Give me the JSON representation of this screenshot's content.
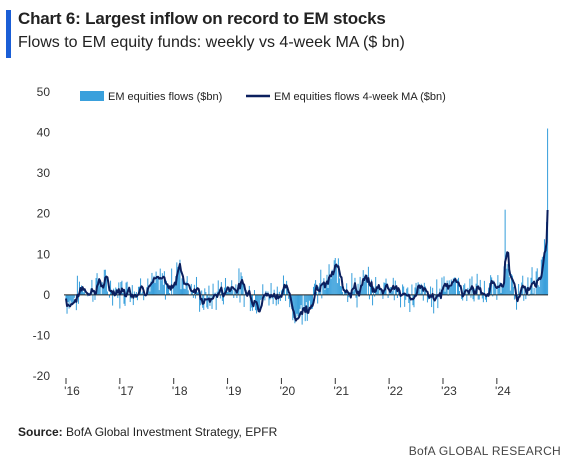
{
  "header": {
    "title": "Chart 6: Largest inflow on record to EM stocks",
    "subtitle": "Flows to EM equity funds: weekly vs 4-week MA ($ bn)"
  },
  "footer": {
    "source_label": "Source:",
    "source_text": " BofA Global Investment Strategy, EPFR",
    "branding": "BofA GLOBAL RESEARCH"
  },
  "colors": {
    "accent": "#1a5ed6",
    "bar": "#3aa0dc",
    "line": "#0b1f5e",
    "zero_line": "#222222"
  },
  "chart_data": {
    "type": "bar",
    "title": "Chart 6: Largest inflow on record to EM stocks",
    "subtitle": "Flows to EM equity funds: weekly vs 4-week MA ($ bn)",
    "xlabel": "",
    "ylabel": "",
    "ylim": [
      -20,
      50
    ],
    "xlim": [
      2016.0,
      2024.95
    ],
    "yticks": [
      50,
      40,
      30,
      20,
      10,
      0,
      -10,
      -20
    ],
    "xticks": [
      {
        "value": 2016,
        "label": "'16"
      },
      {
        "value": 2017,
        "label": "'17"
      },
      {
        "value": 2018,
        "label": "'18"
      },
      {
        "value": 2019,
        "label": "'19"
      },
      {
        "value": 2020,
        "label": "'20"
      },
      {
        "value": 2021,
        "label": "'21"
      },
      {
        "value": 2022,
        "label": "'22"
      },
      {
        "value": 2023,
        "label": "'23"
      },
      {
        "value": 2024,
        "label": "'24"
      }
    ],
    "grid": false,
    "legend": "top",
    "series": [
      {
        "name": "EM equities flows ($bn)",
        "kind": "bar"
      },
      {
        "name": "EM equities flows 4-week MA ($bn)",
        "kind": "line"
      }
    ],
    "anchors": [
      [
        2016.0,
        -1
      ],
      [
        2016.1,
        -2
      ],
      [
        2016.2,
        0
      ],
      [
        2016.3,
        2
      ],
      [
        2016.45,
        1
      ],
      [
        2016.6,
        3
      ],
      [
        2016.75,
        2
      ],
      [
        2016.9,
        1
      ],
      [
        2017.0,
        1
      ],
      [
        2017.15,
        2
      ],
      [
        2017.3,
        1
      ],
      [
        2017.45,
        3
      ],
      [
        2017.6,
        2
      ],
      [
        2017.75,
        3
      ],
      [
        2017.9,
        2
      ],
      [
        2018.0,
        4
      ],
      [
        2018.1,
        6
      ],
      [
        2018.2,
        4
      ],
      [
        2018.3,
        2
      ],
      [
        2018.45,
        0
      ],
      [
        2018.6,
        -2
      ],
      [
        2018.75,
        0
      ],
      [
        2018.9,
        1
      ],
      [
        2019.0,
        2
      ],
      [
        2019.15,
        3
      ],
      [
        2019.3,
        1
      ],
      [
        2019.45,
        0
      ],
      [
        2019.6,
        -1
      ],
      [
        2019.75,
        0
      ],
      [
        2019.9,
        1
      ],
      [
        2020.0,
        1
      ],
      [
        2020.1,
        0
      ],
      [
        2020.2,
        -3
      ],
      [
        2020.3,
        -5
      ],
      [
        2020.45,
        -2
      ],
      [
        2020.6,
        0
      ],
      [
        2020.75,
        2
      ],
      [
        2020.9,
        4
      ],
      [
        2021.0,
        6
      ],
      [
        2021.1,
        4
      ],
      [
        2021.25,
        2
      ],
      [
        2021.4,
        1
      ],
      [
        2021.55,
        3
      ],
      [
        2021.7,
        1
      ],
      [
        2021.85,
        2
      ],
      [
        2022.0,
        3
      ],
      [
        2022.15,
        1
      ],
      [
        2022.3,
        -1
      ],
      [
        2022.45,
        0
      ],
      [
        2022.6,
        1
      ],
      [
        2022.75,
        -1
      ],
      [
        2022.9,
        0
      ],
      [
        2023.0,
        3
      ],
      [
        2023.1,
        4
      ],
      [
        2023.25,
        2
      ],
      [
        2023.4,
        1
      ],
      [
        2023.55,
        2
      ],
      [
        2023.7,
        0
      ],
      [
        2023.85,
        1
      ],
      [
        2024.0,
        2
      ],
      [
        2024.1,
        5
      ],
      [
        2024.15,
        8
      ],
      [
        2024.2,
        4
      ],
      [
        2024.3,
        1
      ],
      [
        2024.45,
        0
      ],
      [
        2024.6,
        2
      ],
      [
        2024.7,
        4
      ],
      [
        2024.8,
        5
      ],
      [
        2024.86,
        8
      ],
      [
        2024.9,
        12
      ],
      [
        2024.95,
        17
      ]
    ],
    "notable_points": [
      {
        "x": 2018.05,
        "value": 8
      },
      {
        "x": 2018.1,
        "value": 7
      },
      {
        "x": 2020.25,
        "value": -7
      },
      {
        "x": 2021.05,
        "value": 9
      },
      {
        "x": 2024.15,
        "value": 21
      },
      {
        "x": 2024.9,
        "value": 11
      },
      {
        "x": 2024.95,
        "value": 41
      }
    ]
  }
}
